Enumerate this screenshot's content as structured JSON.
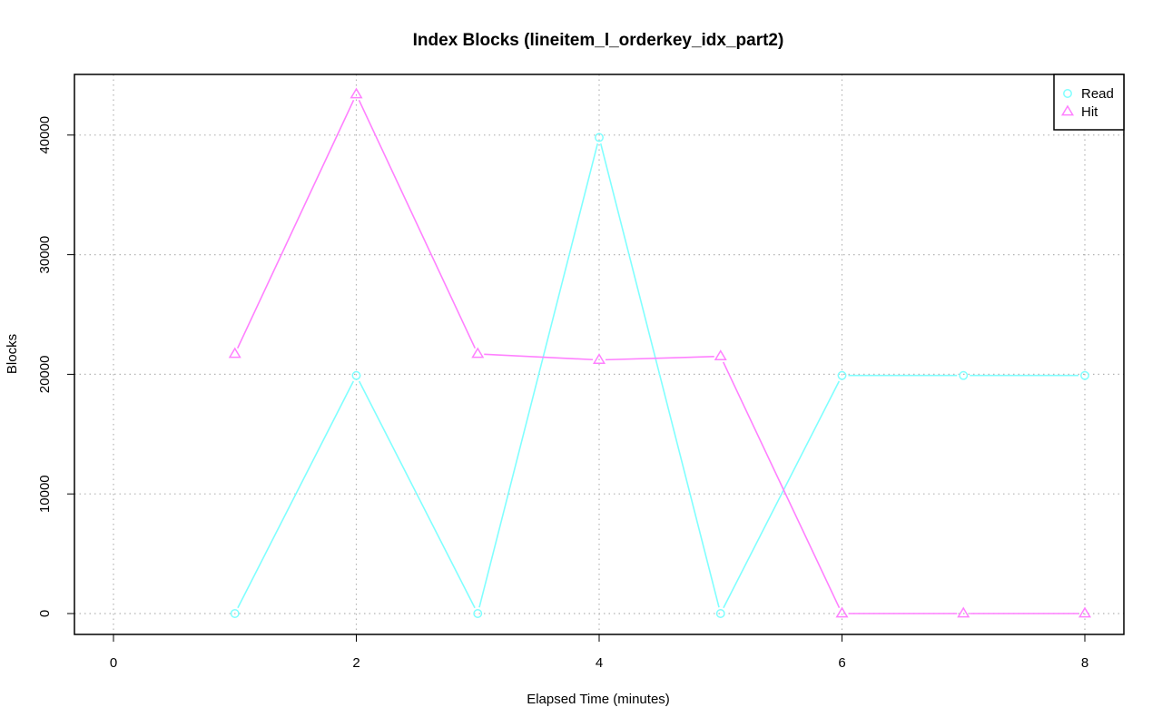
{
  "chart_data": {
    "type": "line",
    "title": "Index Blocks (lineitem_l_orderkey_idx_part2)",
    "xlabel": "Elapsed Time (minutes)",
    "ylabel": "Blocks",
    "xlim": [
      0,
      8
    ],
    "ylim": [
      0,
      43400
    ],
    "x_ticks": [
      0,
      2,
      4,
      6,
      8
    ],
    "y_ticks": [
      0,
      10000,
      20000,
      30000,
      40000
    ],
    "grid": true,
    "legend_position": "top-right",
    "series": [
      {
        "name": "Read",
        "color": "#80ffff",
        "marker": "circle",
        "x": [
          1,
          2,
          3,
          4,
          5,
          6,
          7,
          8
        ],
        "values": [
          0,
          19900,
          0,
          39800,
          0,
          19900,
          19900,
          19900
        ]
      },
      {
        "name": "Hit",
        "color": "#ff80ff",
        "marker": "triangle",
        "x": [
          1,
          2,
          3,
          4,
          5,
          6,
          7,
          8
        ],
        "values": [
          21700,
          43400,
          21700,
          21200,
          21500,
          0,
          0,
          0
        ]
      }
    ]
  }
}
